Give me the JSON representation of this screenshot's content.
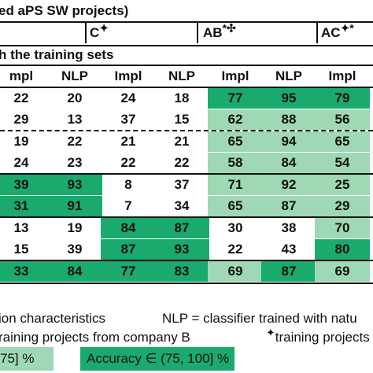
{
  "header": {
    "group_title": "ed aPS SW projects)",
    "section_c": "C",
    "section_c_mark": "✦",
    "section_ab": "AB",
    "section_ab_mark": "*✣",
    "section_ac": "AC",
    "section_ac_mark": "✦*",
    "subtitle": "h the training sets"
  },
  "columns": [
    "mpl",
    "NLP",
    "Impl",
    "NLP",
    "Impl",
    "NLP",
    "Impl"
  ],
  "rows": [
    [
      "22",
      "20",
      "24",
      "18",
      "77",
      "95",
      "79"
    ],
    [
      "29",
      "13",
      "37",
      "15",
      "62",
      "88",
      "56"
    ],
    [
      "19",
      "22",
      "21",
      "21",
      "65",
      "94",
      "65"
    ],
    [
      "24",
      "23",
      "22",
      "22",
      "58",
      "84",
      "54"
    ],
    [
      "39",
      "93",
      "8",
      "37",
      "71",
      "92",
      "25"
    ],
    [
      "31",
      "91",
      "7",
      "34",
      "65",
      "87",
      "29"
    ],
    [
      "13",
      "19",
      "84",
      "87",
      "30",
      "38",
      "70"
    ],
    [
      "15",
      "39",
      "87",
      "93",
      "22",
      "43",
      "80"
    ],
    [
      "33",
      "84",
      "77",
      "83",
      "69",
      "87",
      "69"
    ]
  ],
  "shading": [
    [
      "",
      "",
      "",
      "",
      "hi",
      "hi",
      "hi"
    ],
    [
      "",
      "",
      "",
      "",
      "md",
      "md",
      "md"
    ],
    [
      "",
      "",
      "",
      "",
      "md",
      "md",
      "md"
    ],
    [
      "",
      "",
      "",
      "",
      "md",
      "md",
      "md"
    ],
    [
      "hi",
      "hi",
      "",
      "",
      "md",
      "md",
      "md"
    ],
    [
      "hi",
      "hi",
      "",
      "",
      "md",
      "md",
      "md"
    ],
    [
      "",
      "",
      "hi",
      "hi",
      "",
      "",
      "md"
    ],
    [
      "",
      "",
      "hi",
      "hi",
      "",
      "",
      "hi"
    ],
    [
      "hi",
      "hi",
      "hi",
      "hi",
      "md",
      "hi",
      "md"
    ]
  ],
  "colors": {
    "high": "#1aaa6e",
    "medium": "#9fd8b4",
    "line": "#111111"
  },
  "footer": {
    "impl_desc": "ion characteristics",
    "nlp_desc": "NLP = classifier trained with natu",
    "company_b": "raining projects from company B",
    "mark_note": "training projects fr",
    "mark_symbol": "✦",
    "legend_medium": "75] %",
    "legend_high": "Accuracy ∈ (75, 100] %"
  }
}
